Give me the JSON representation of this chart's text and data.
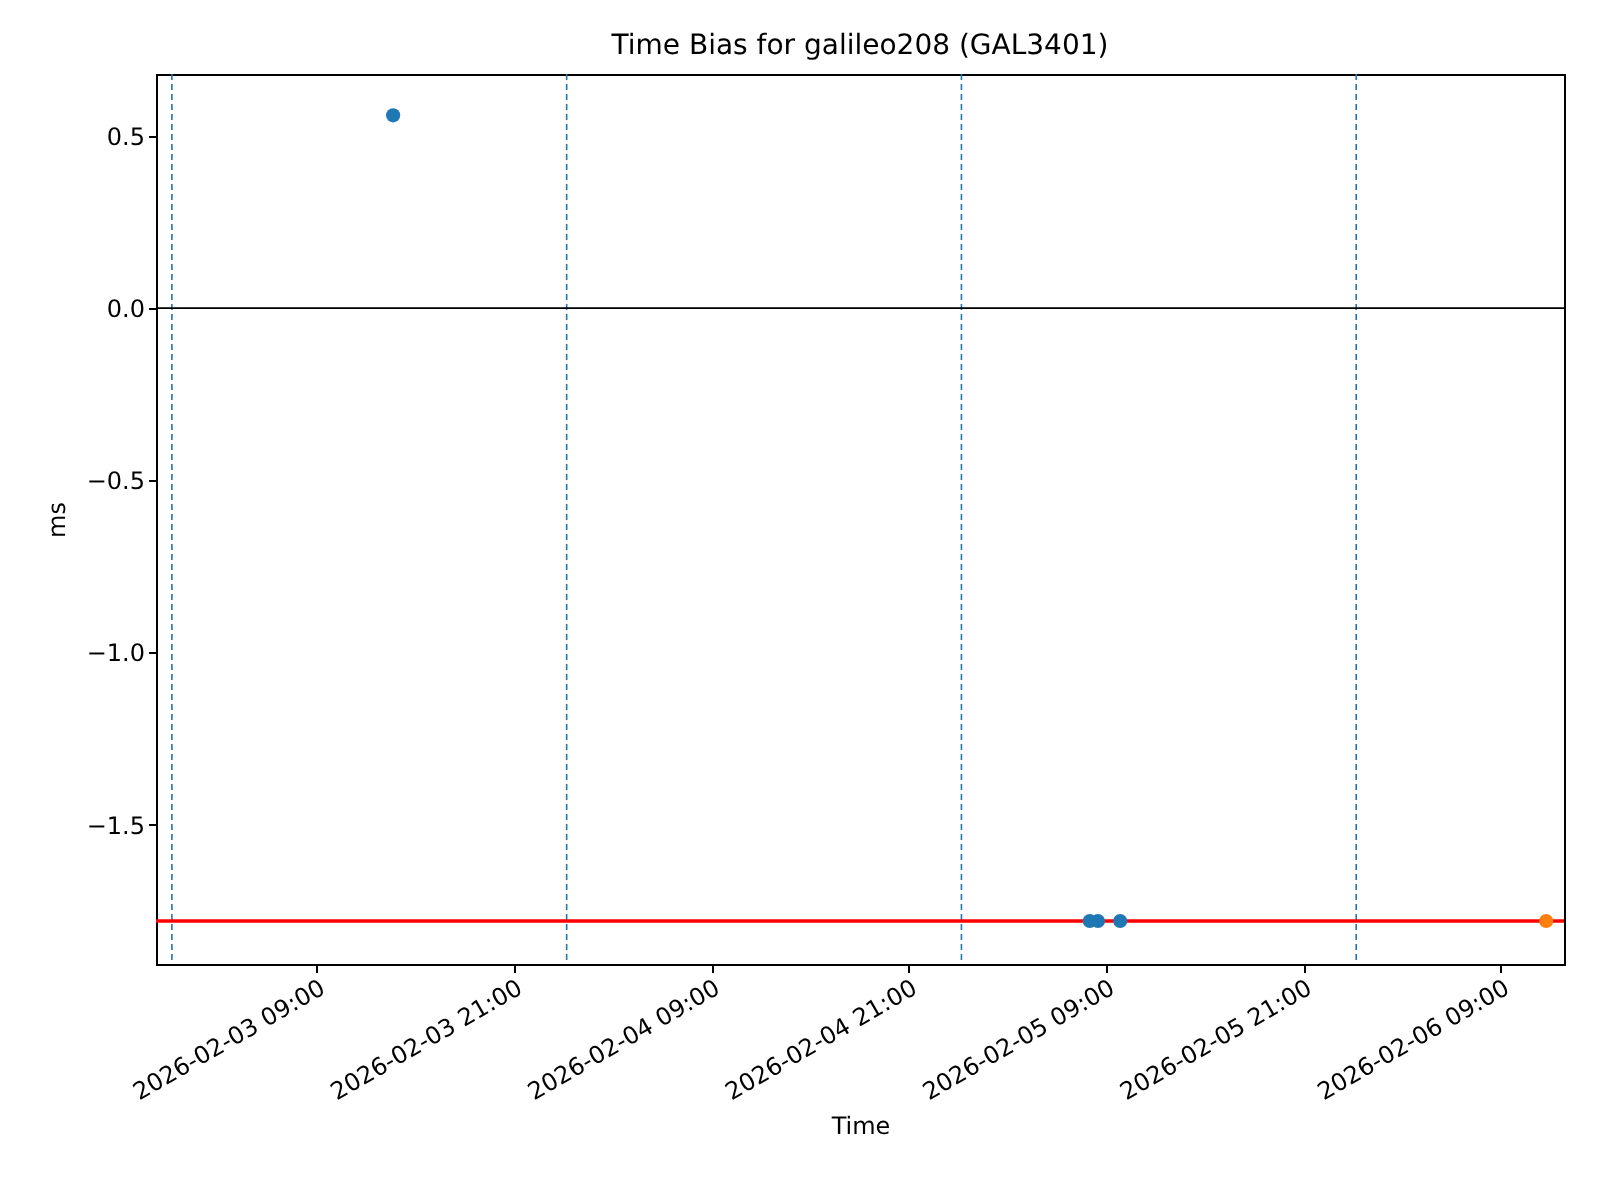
{
  "chart_data": {
    "type": "scatter",
    "title": "Time Bias for galileo208 (GAL3401)",
    "xlabel": "Time",
    "ylabel": "ms",
    "series": [
      {
        "color": "#1f77b4",
        "x": [
          "2026-02-03T13:39",
          "2026-02-05T08:00",
          "2026-02-05T08:30",
          "2026-02-05T09:51"
        ],
        "values": [
          0.56,
          -1.78,
          -1.78,
          -1.78
        ]
      },
      {
        "color": "#ff7f0e",
        "x": [
          "2026-02-06T11:45"
        ],
        "values": [
          -1.78
        ]
      }
    ],
    "marker": "circle",
    "xlim": [
      "2026-02-02T23:14",
      "2026-02-06T12:50"
    ],
    "ylim": [
      -1.905,
      0.68
    ],
    "xticks": [
      {
        "value": "2026-02-03T09:00",
        "label": "2026-02-03 09:00"
      },
      {
        "value": "2026-02-03T21:00",
        "label": "2026-02-03 21:00"
      },
      {
        "value": "2026-02-04T09:00",
        "label": "2026-02-04 09:00"
      },
      {
        "value": "2026-02-04T21:00",
        "label": "2026-02-04 21:00"
      },
      {
        "value": "2026-02-05T09:00",
        "label": "2026-02-05 09:00"
      },
      {
        "value": "2026-02-05T21:00",
        "label": "2026-02-05 21:00"
      },
      {
        "value": "2026-02-06T09:00",
        "label": "2026-02-06 09:00"
      }
    ],
    "yticks": [
      {
        "value": -1.5,
        "label": "−1.5"
      },
      {
        "value": -1.0,
        "label": "−1.0"
      },
      {
        "value": -0.5,
        "label": "−0.5"
      },
      {
        "value": 0.0,
        "label": "0.0"
      },
      {
        "value": 0.5,
        "label": "0.5"
      }
    ],
    "ref_lines": [
      {
        "axis": "y",
        "value": 0,
        "color": "#000000",
        "line_style": "solid"
      },
      {
        "axis": "y",
        "value": -1.78,
        "color": "#ff0000",
        "line_style": "solid"
      },
      {
        "axis": "x",
        "value": "2026-02-03T00:12",
        "color": "#1f77b4",
        "line_style": "dashed"
      },
      {
        "axis": "x",
        "value": "2026-02-04T00:12",
        "color": "#1f77b4",
        "line_style": "dashed"
      },
      {
        "axis": "x",
        "value": "2026-02-05T00:12",
        "color": "#1f77b4",
        "line_style": "dashed"
      },
      {
        "axis": "x",
        "value": "2026-02-06T00:12",
        "color": "#1f77b4",
        "line_style": "dashed"
      }
    ],
    "grid": false
  }
}
